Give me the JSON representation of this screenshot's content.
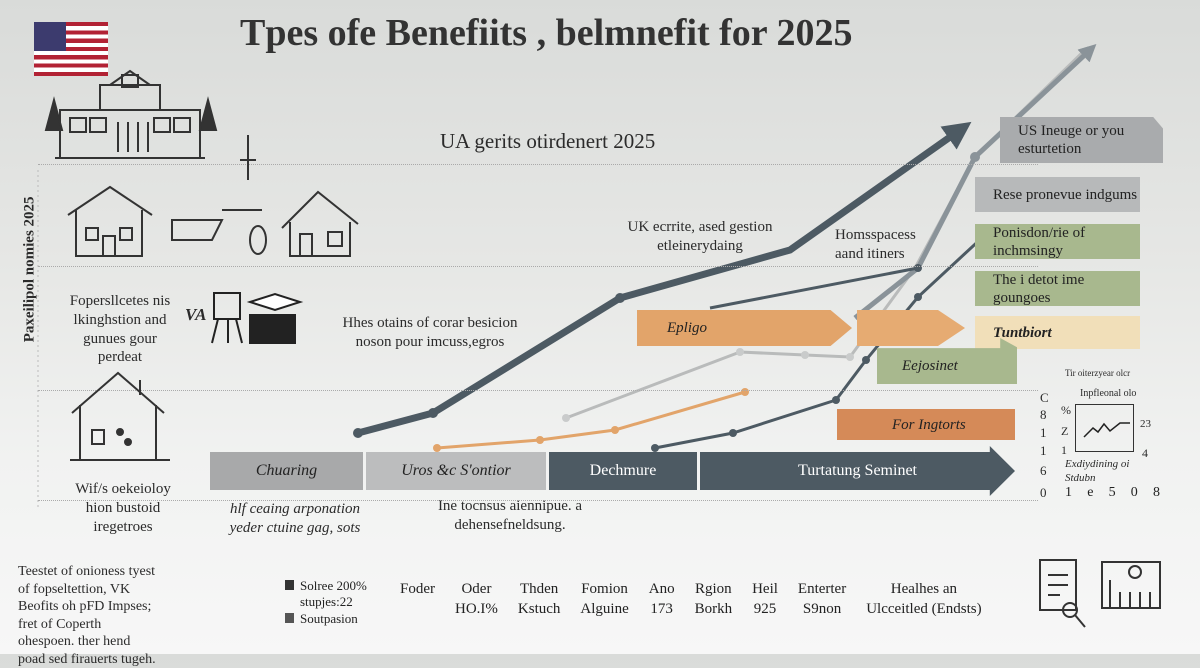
{
  "title": "Tpes ofe Benefiits , belmnefit for 2025",
  "subtitle": "UA gerits otirdenert 2025",
  "y_axis_label": "Paxeilipol nomies 2025",
  "left_texts": [
    "Fopersllcetes nis lkinghstion and gunues gour perdeat",
    "Wif/s oekeioloy hion bustoid iregetroes"
  ],
  "icon_text": "VA",
  "annotations": [
    "UK ecrrite, ased gestion etleinerydaing",
    "Homsspacess aand itiners",
    "Hhes otains of corar besicion noson pour imcuss,egros",
    "hlf ceaing arponation yeder ctuine gag, sots",
    "Ine tocnsus aiennipue. a dehensefneldsung."
  ],
  "side_boxes": [
    "US Ineuge or you esturtetion",
    "Rese pronevue indgums",
    "Ponisdon/rie of inchmsingy",
    "The i detot ime goungoes",
    "Tuntbiort"
  ],
  "arrow_labels": {
    "epligo": "Epligo",
    "ejosinet": "Eejosinet",
    "ingtorts": "For Ingtorts"
  },
  "timeline": [
    "Chuaring",
    "Uros &c S'ontior",
    "Dechmure",
    "Turtatung Seminet"
  ],
  "mini_chart": {
    "caption1": "Tir oiterzyear olcr",
    "caption2": "Inpfleonal olo",
    "left_ticks": [
      "C",
      "8",
      "1",
      "1",
      "6",
      "0"
    ],
    "inner_ticks": [
      "%",
      "Z",
      "1"
    ],
    "right_ticks": [
      "23",
      "4"
    ],
    "bottom_ticks": [
      "1",
      "e",
      "5",
      "0",
      "8"
    ],
    "xlabel": "Exdiydining oi Stdubn"
  },
  "footer": {
    "paragraph": "Teestet of onioness tyest of fopseltettion, VK Beofits oh pFD Impses; fret of Coperth ohespoen. ther hend poad sed firauerts tugeh.",
    "legend": [
      "Solree 200% stupjes:22",
      "Soutpasion"
    ],
    "columns": [
      [
        "",
        "Foder"
      ],
      [
        "Oder",
        "HO.I%"
      ],
      [
        "Thden",
        "Kstuch"
      ],
      [
        "Fomion",
        "Alguine"
      ],
      [
        "Ano",
        "173"
      ],
      [
        "Rgion",
        "Borkh"
      ],
      [
        "Heil",
        "925"
      ],
      [
        "Enterter",
        "S9non"
      ],
      [
        "Healhes an",
        "Ulcceitled (Endsts)"
      ]
    ]
  },
  "colors": {
    "dark": "#4d5a63",
    "gray": "#a7a9ab",
    "orange": "#e2a46a",
    "green": "#9fb07f",
    "tan": "#f1dfb9",
    "rust": "#d58a58"
  }
}
